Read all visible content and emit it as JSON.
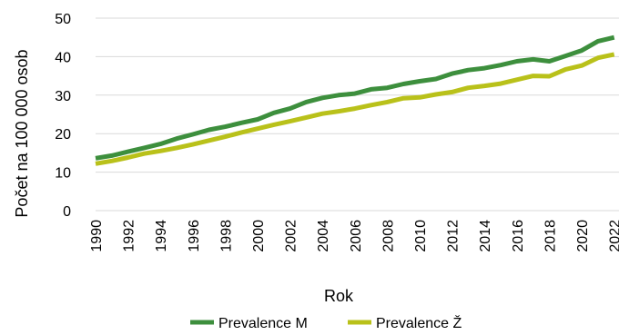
{
  "chart_data": {
    "type": "line",
    "xlabel": "Rok",
    "ylabel": "Počet na 100 000 osob",
    "ylim": [
      0,
      50
    ],
    "yticks": [
      "0",
      "10",
      "20",
      "30",
      "40",
      "50"
    ],
    "xticks": [
      "1990",
      "1992",
      "1994",
      "1996",
      "1998",
      "2000",
      "2002",
      "2004",
      "2006",
      "2008",
      "2010",
      "2012",
      "2014",
      "2016",
      "2018",
      "2020",
      "2022"
    ],
    "x": [
      1990,
      1991,
      1992,
      1993,
      1994,
      1995,
      1996,
      1997,
      1998,
      1999,
      2000,
      2001,
      2002,
      2003,
      2004,
      2005,
      2006,
      2007,
      2008,
      2009,
      2010,
      2011,
      2012,
      2013,
      2014,
      2015,
      2016,
      2017,
      2018,
      2019,
      2020,
      2021,
      2022
    ],
    "grid": "horizontal",
    "legend_position": "bottom",
    "series": [
      {
        "name": "Prevalence M",
        "color": "#3d8f3d",
        "values": [
          13.6,
          14.3,
          15.3,
          16.3,
          17.3,
          18.7,
          19.8,
          21.0,
          21.8,
          22.8,
          23.7,
          25.4,
          26.5,
          28.2,
          29.3,
          30.0,
          30.4,
          31.5,
          31.9,
          32.9,
          33.6,
          34.2,
          35.6,
          36.5,
          37.0,
          37.8,
          38.8,
          39.3,
          38.8,
          40.2,
          41.6,
          44.0,
          45.0
        ]
      },
      {
        "name": "Prevalence Ž",
        "color": "#b9c11a",
        "values": [
          12.2,
          12.9,
          13.8,
          14.8,
          15.5,
          16.3,
          17.2,
          18.2,
          19.2,
          20.3,
          21.3,
          22.3,
          23.2,
          24.2,
          25.2,
          25.8,
          26.5,
          27.4,
          28.2,
          29.2,
          29.4,
          30.2,
          30.8,
          31.9,
          32.4,
          33.0,
          34.0,
          35.0,
          34.9,
          36.7,
          37.7,
          39.7,
          40.6
        ]
      }
    ]
  }
}
